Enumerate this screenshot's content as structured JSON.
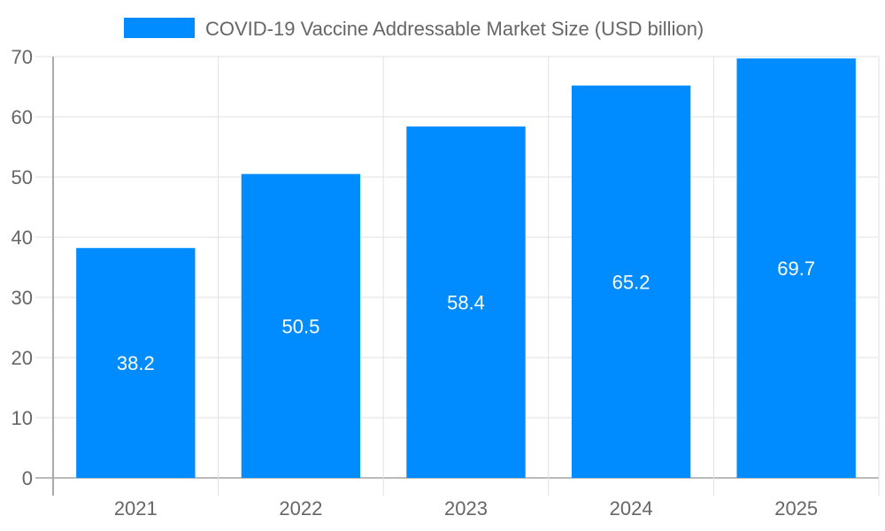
{
  "chart_data": {
    "type": "bar",
    "title": "",
    "xlabel": "",
    "ylabel": "",
    "categories": [
      "2021",
      "2022",
      "2023",
      "2024",
      "2025"
    ],
    "series": [
      {
        "name": "COVID-19 Vaccine Addressable Market Size (USD billion)",
        "values": [
          38.2,
          50.5,
          58.4,
          65.2,
          69.7
        ],
        "color": "#008cff"
      }
    ],
    "ylim": [
      0,
      70
    ],
    "yticks": [
      0,
      10,
      20,
      30,
      40,
      50,
      60,
      70
    ],
    "grid": true,
    "legend_position": "top",
    "data_labels": [
      "38.2",
      "50.5",
      "58.4",
      "65.2",
      "69.7"
    ]
  }
}
